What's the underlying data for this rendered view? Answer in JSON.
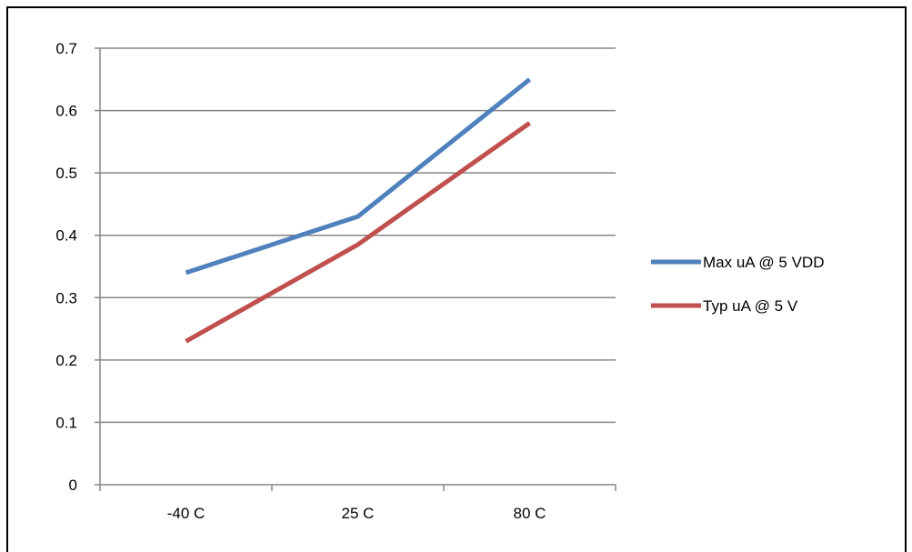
{
  "chart_data": {
    "type": "line",
    "title": "",
    "xlabel": "",
    "ylabel": "",
    "categories": [
      "-40 C",
      "25 C",
      "80 C"
    ],
    "ylim": [
      0,
      0.7
    ],
    "yticks": [
      0,
      0.1,
      0.2,
      0.3,
      0.4,
      0.5,
      0.6,
      0.7
    ],
    "ytick_labels": [
      "0",
      "0.1",
      "0.2",
      "0.3",
      "0.4",
      "0.5",
      "0.6",
      "0.7"
    ],
    "grid": true,
    "legend_position": "right",
    "series": [
      {
        "name": "Max uA @ 5 VDD",
        "color": "#4f81bd",
        "values": [
          0.34,
          0.43,
          0.65
        ]
      },
      {
        "name": "Typ uA @ 5 V",
        "color": "#c0504d",
        "values": [
          0.23,
          0.385,
          0.58
        ]
      }
    ]
  }
}
